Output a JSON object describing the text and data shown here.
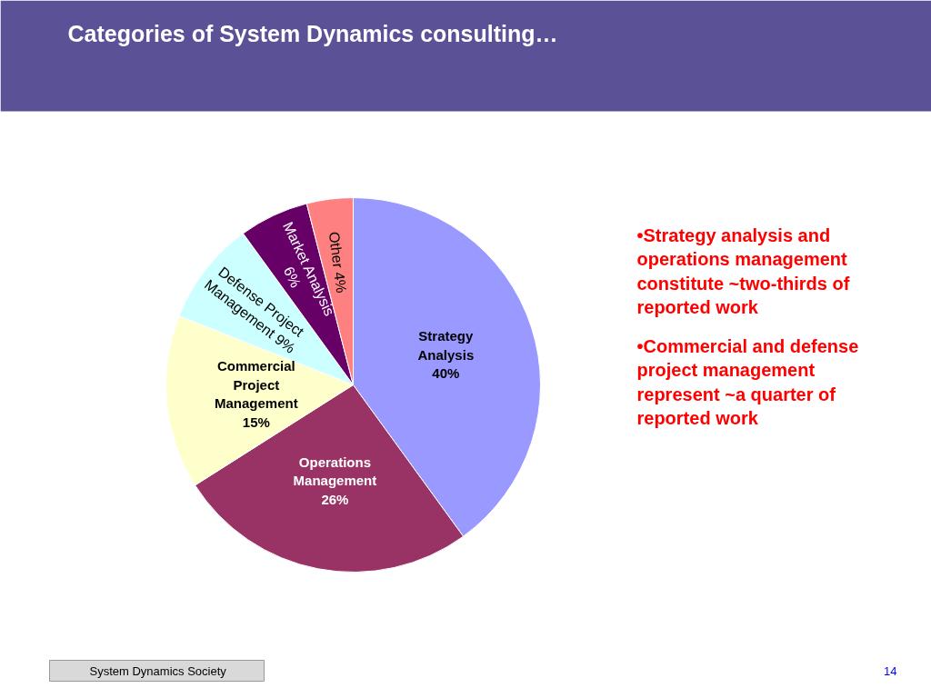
{
  "chart_data": {
    "type": "pie",
    "title": "Categories of System Dynamics consulting…",
    "categories": [
      "Strategy Analysis",
      "Operations Management",
      "Commercial Project Management",
      "Defense Project Management",
      "Market Analysis",
      "Other"
    ],
    "values": [
      40,
      26,
      15,
      9,
      6,
      4
    ],
    "value_labels": [
      "40%",
      "26%",
      "15%",
      "9%",
      "6%",
      "4%"
    ],
    "colors": [
      "#9999ff",
      "#993366",
      "#ffffcc",
      "#ccffff",
      "#660066",
      "#ff8080"
    ],
    "annotations": [
      "•Strategy analysis and operations management constitute ~two-thirds of reported work",
      "•Commercial and defense project management represent ~a quarter of reported work",
      "System Dynamics Society",
      "14"
    ]
  }
}
